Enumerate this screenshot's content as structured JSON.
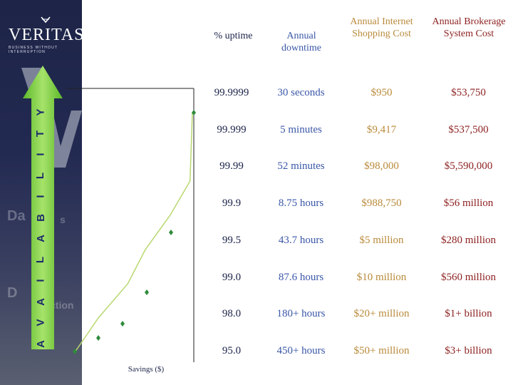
{
  "brand": {
    "name": "VERITAS",
    "tagline": "BUSINESS WITHOUT INTERRUPTION"
  },
  "sidebar": {
    "background_text_1": "Da",
    "background_text_1b": "s",
    "background_text_2": "D",
    "background_text_2b": "ction"
  },
  "axis_word": [
    "A",
    "V",
    "A",
    "I",
    "L",
    "A",
    "B",
    "I",
    "L",
    "I",
    "T",
    "Y"
  ],
  "headers": {
    "uptime": "% uptime",
    "downtime": "Annual downtime",
    "internet_cost": "Annual Internet Shopping Cost",
    "brokerage_cost": "Annual Brokerage System Cost"
  },
  "rows": [
    {
      "uptime": "99.9999",
      "downtime": "30 seconds",
      "internet": "$950",
      "brokerage": "$53,750"
    },
    {
      "uptime": "99.999",
      "downtime": "5 minutes",
      "internet": "$9,417",
      "brokerage": "$537,500"
    },
    {
      "uptime": "99.99",
      "downtime": "52 minutes",
      "internet": "$98,000",
      "brokerage": "$5,590,000"
    },
    {
      "uptime": "99.9",
      "downtime": "8.75 hours",
      "internet": "$988,750",
      "brokerage": "$56 million"
    },
    {
      "uptime": "99.5",
      "downtime": "43.7 hours",
      "internet": "$5 million",
      "brokerage": "$280 million"
    },
    {
      "uptime": "99.0",
      "downtime": "87.6 hours",
      "internet": "$10 million",
      "brokerage": "$560 million"
    },
    {
      "uptime": "98.0",
      "downtime": "180+ hours",
      "internet": "$20+ million",
      "brokerage": "$1+ billion"
    },
    {
      "uptime": "95.0",
      "downtime": "450+ hours",
      "internet": "$50+ million",
      "brokerage": "$3+ billion"
    }
  ],
  "colors": {
    "curve": "#b8d870",
    "marker": "#2e8b3a",
    "arrow": "#7ccf3a",
    "sidebar": "#1d2447",
    "header_uptime": "#1a2248",
    "header_downtime": "#3a57a8",
    "header_internet": "#b98a3a",
    "header_brokerage": "#8c1f1f"
  },
  "chart_data": {
    "type": "line",
    "title": "",
    "xlabel": "Savings ($)",
    "ylabel": "AVAILABILITY",
    "categories": [
      "95.0",
      "98.0",
      "99.0",
      "99.5",
      "99.9",
      "99.99",
      "99.999",
      "99.9999"
    ],
    "x": [
      0,
      1,
      2,
      3,
      4,
      5,
      6,
      7
    ],
    "y": [
      0,
      1,
      2,
      3,
      4,
      5,
      6,
      7
    ],
    "x_relative": [
      0.0,
      0.2,
      0.45,
      0.6,
      0.81,
      0.98,
      1.0,
      1.0
    ],
    "series": [
      {
        "values": [
          0,
          1,
          2,
          3,
          4,
          5,
          6,
          7
        ]
      }
    ],
    "grid": false,
    "legend": "none"
  }
}
